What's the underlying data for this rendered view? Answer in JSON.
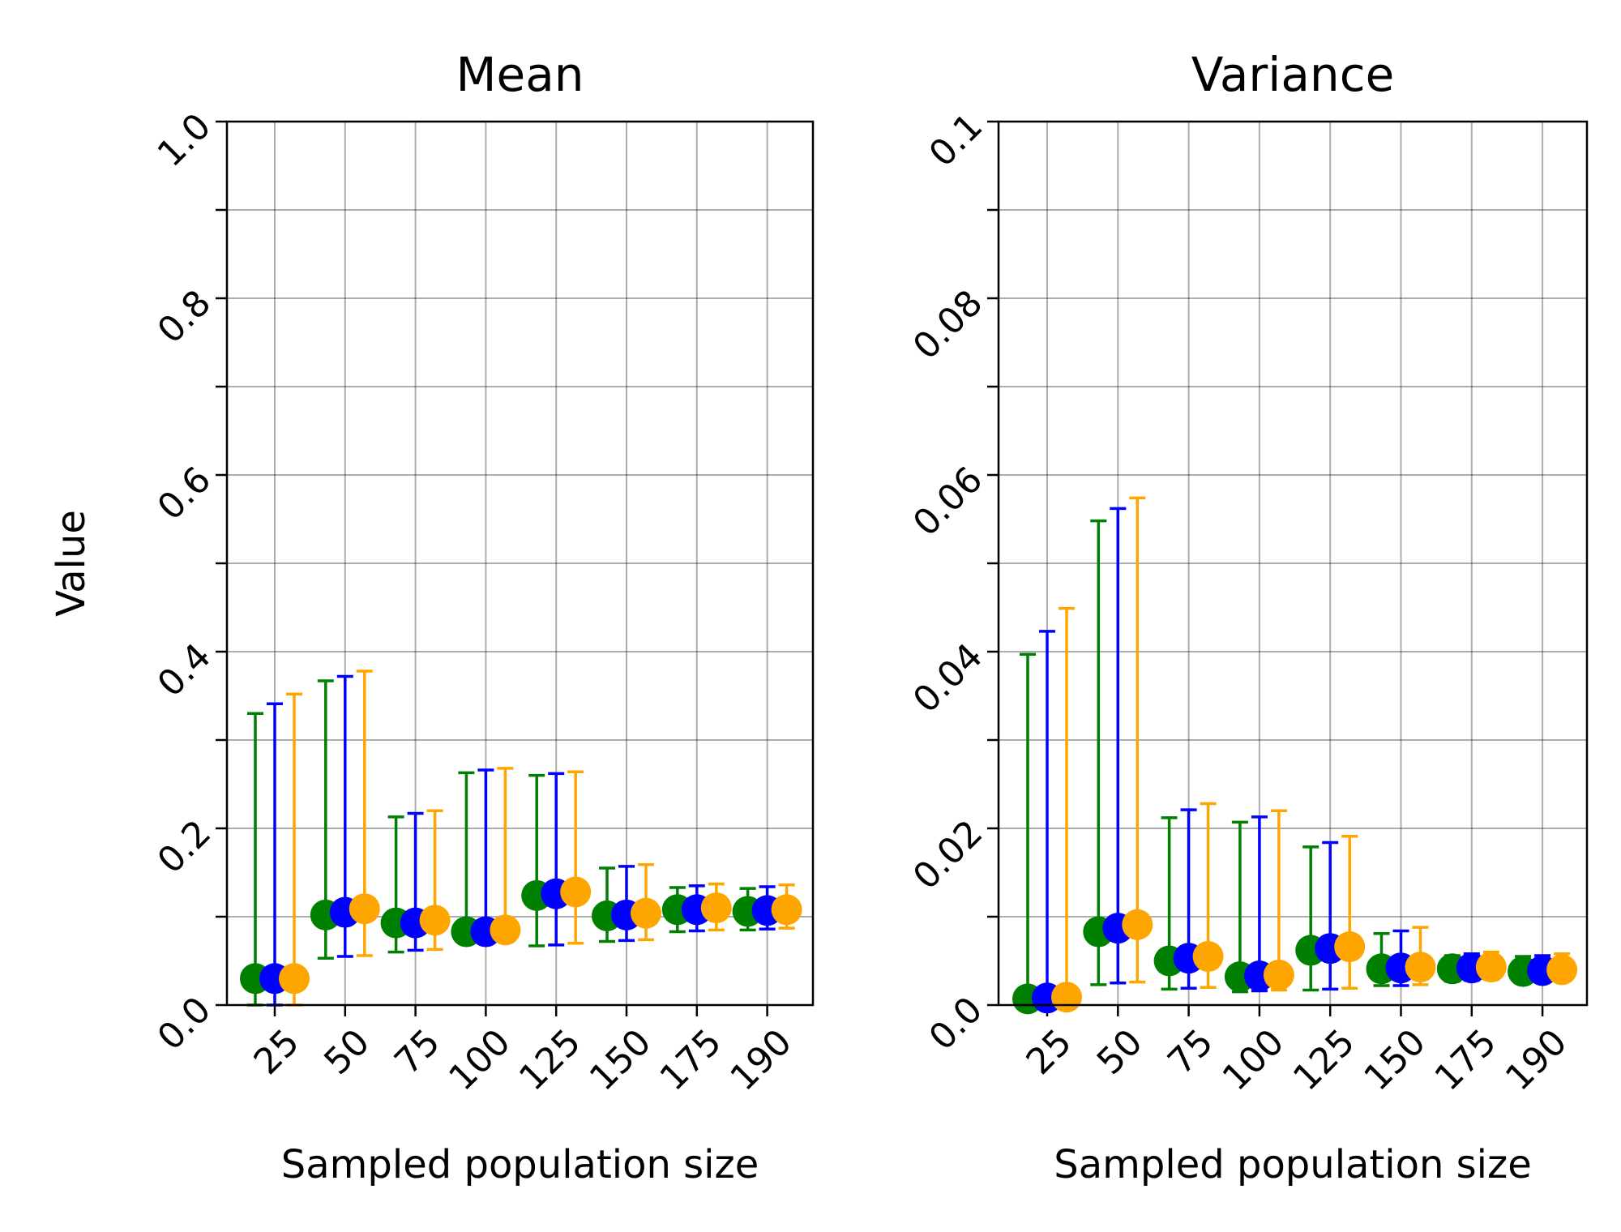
{
  "chart_data": [
    {
      "type": "scatter",
      "title": "Mean",
      "xlabel": "Sampled population size",
      "ylabel": "Value",
      "categories": [
        "25",
        "50",
        "75",
        "100",
        "125",
        "150",
        "175",
        "190"
      ],
      "ylim": [
        0,
        1.0
      ],
      "yticks": [
        0.0,
        0.1,
        0.2,
        0.3,
        0.4,
        0.5,
        0.6,
        0.7,
        0.8,
        0.9,
        1.0
      ],
      "ytick_labels": [
        "0.0",
        "",
        "0.2",
        "",
        "0.4",
        "",
        "0.6",
        "",
        "0.8",
        "",
        "1.0"
      ],
      "grid": true,
      "series": [
        {
          "color": "#008000",
          "values": [
            0.03,
            0.102,
            0.093,
            0.083,
            0.124,
            0.101,
            0.108,
            0.106
          ],
          "err_low": [
            0.0,
            0.053,
            0.06,
            0.08,
            0.067,
            0.072,
            0.083,
            0.085
          ],
          "err_high": [
            0.33,
            0.367,
            0.213,
            0.263,
            0.26,
            0.155,
            0.133,
            0.132
          ]
        },
        {
          "color": "#0000ff",
          "values": [
            0.03,
            0.105,
            0.093,
            0.083,
            0.126,
            0.102,
            0.108,
            0.107
          ],
          "err_low": [
            0.0,
            0.055,
            0.062,
            0.08,
            0.068,
            0.073,
            0.084,
            0.086
          ],
          "err_high": [
            0.341,
            0.372,
            0.217,
            0.266,
            0.262,
            0.157,
            0.135,
            0.134
          ]
        },
        {
          "color": "#ffa500",
          "values": [
            0.03,
            0.109,
            0.096,
            0.085,
            0.128,
            0.104,
            0.11,
            0.108
          ],
          "err_low": [
            0.0,
            0.056,
            0.063,
            0.08,
            0.07,
            0.074,
            0.085,
            0.087
          ],
          "err_high": [
            0.352,
            0.378,
            0.22,
            0.268,
            0.264,
            0.159,
            0.137,
            0.136
          ]
        }
      ]
    },
    {
      "type": "scatter",
      "title": "Variance",
      "xlabel": "Sampled population size",
      "ylabel": "",
      "categories": [
        "25",
        "50",
        "75",
        "100",
        "125",
        "150",
        "175",
        "190"
      ],
      "ylim": [
        0,
        0.1
      ],
      "yticks": [
        0.0,
        0.01,
        0.02,
        0.03,
        0.04,
        0.05,
        0.06,
        0.07,
        0.08,
        0.09,
        0.1
      ],
      "ytick_labels": [
        "0.0",
        "",
        "0.02",
        "",
        "0.04",
        "",
        "0.06",
        "",
        "0.08",
        "",
        "0.1"
      ],
      "grid": true,
      "series": [
        {
          "color": "#008000",
          "values": [
            0.0007,
            0.0083,
            0.005,
            0.0032,
            0.0062,
            0.0041,
            0.0041,
            0.0038
          ],
          "err_low": [
            0.0,
            0.0023,
            0.0018,
            0.0015,
            0.0017,
            0.0022,
            0.0027,
            0.0029
          ],
          "err_high": [
            0.0397,
            0.0548,
            0.0212,
            0.0207,
            0.0179,
            0.0081,
            0.0056,
            0.0055
          ]
        },
        {
          "color": "#0000ff",
          "values": [
            0.0008,
            0.0087,
            0.0053,
            0.0033,
            0.0064,
            0.0042,
            0.0042,
            0.0039
          ],
          "err_low": [
            0.0,
            0.0025,
            0.0019,
            0.0016,
            0.0018,
            0.0022,
            0.0028,
            0.003
          ],
          "err_high": [
            0.0423,
            0.0562,
            0.0221,
            0.0213,
            0.0184,
            0.0084,
            0.0058,
            0.0056
          ]
        },
        {
          "color": "#ffa500",
          "values": [
            0.0009,
            0.0091,
            0.0055,
            0.0034,
            0.0066,
            0.0043,
            0.0043,
            0.004
          ],
          "err_low": [
            0.0,
            0.0026,
            0.002,
            0.0017,
            0.0019,
            0.0023,
            0.0029,
            0.0031
          ],
          "err_high": [
            0.0449,
            0.0574,
            0.0228,
            0.022,
            0.0191,
            0.0088,
            0.006,
            0.0058
          ]
        }
      ]
    }
  ]
}
